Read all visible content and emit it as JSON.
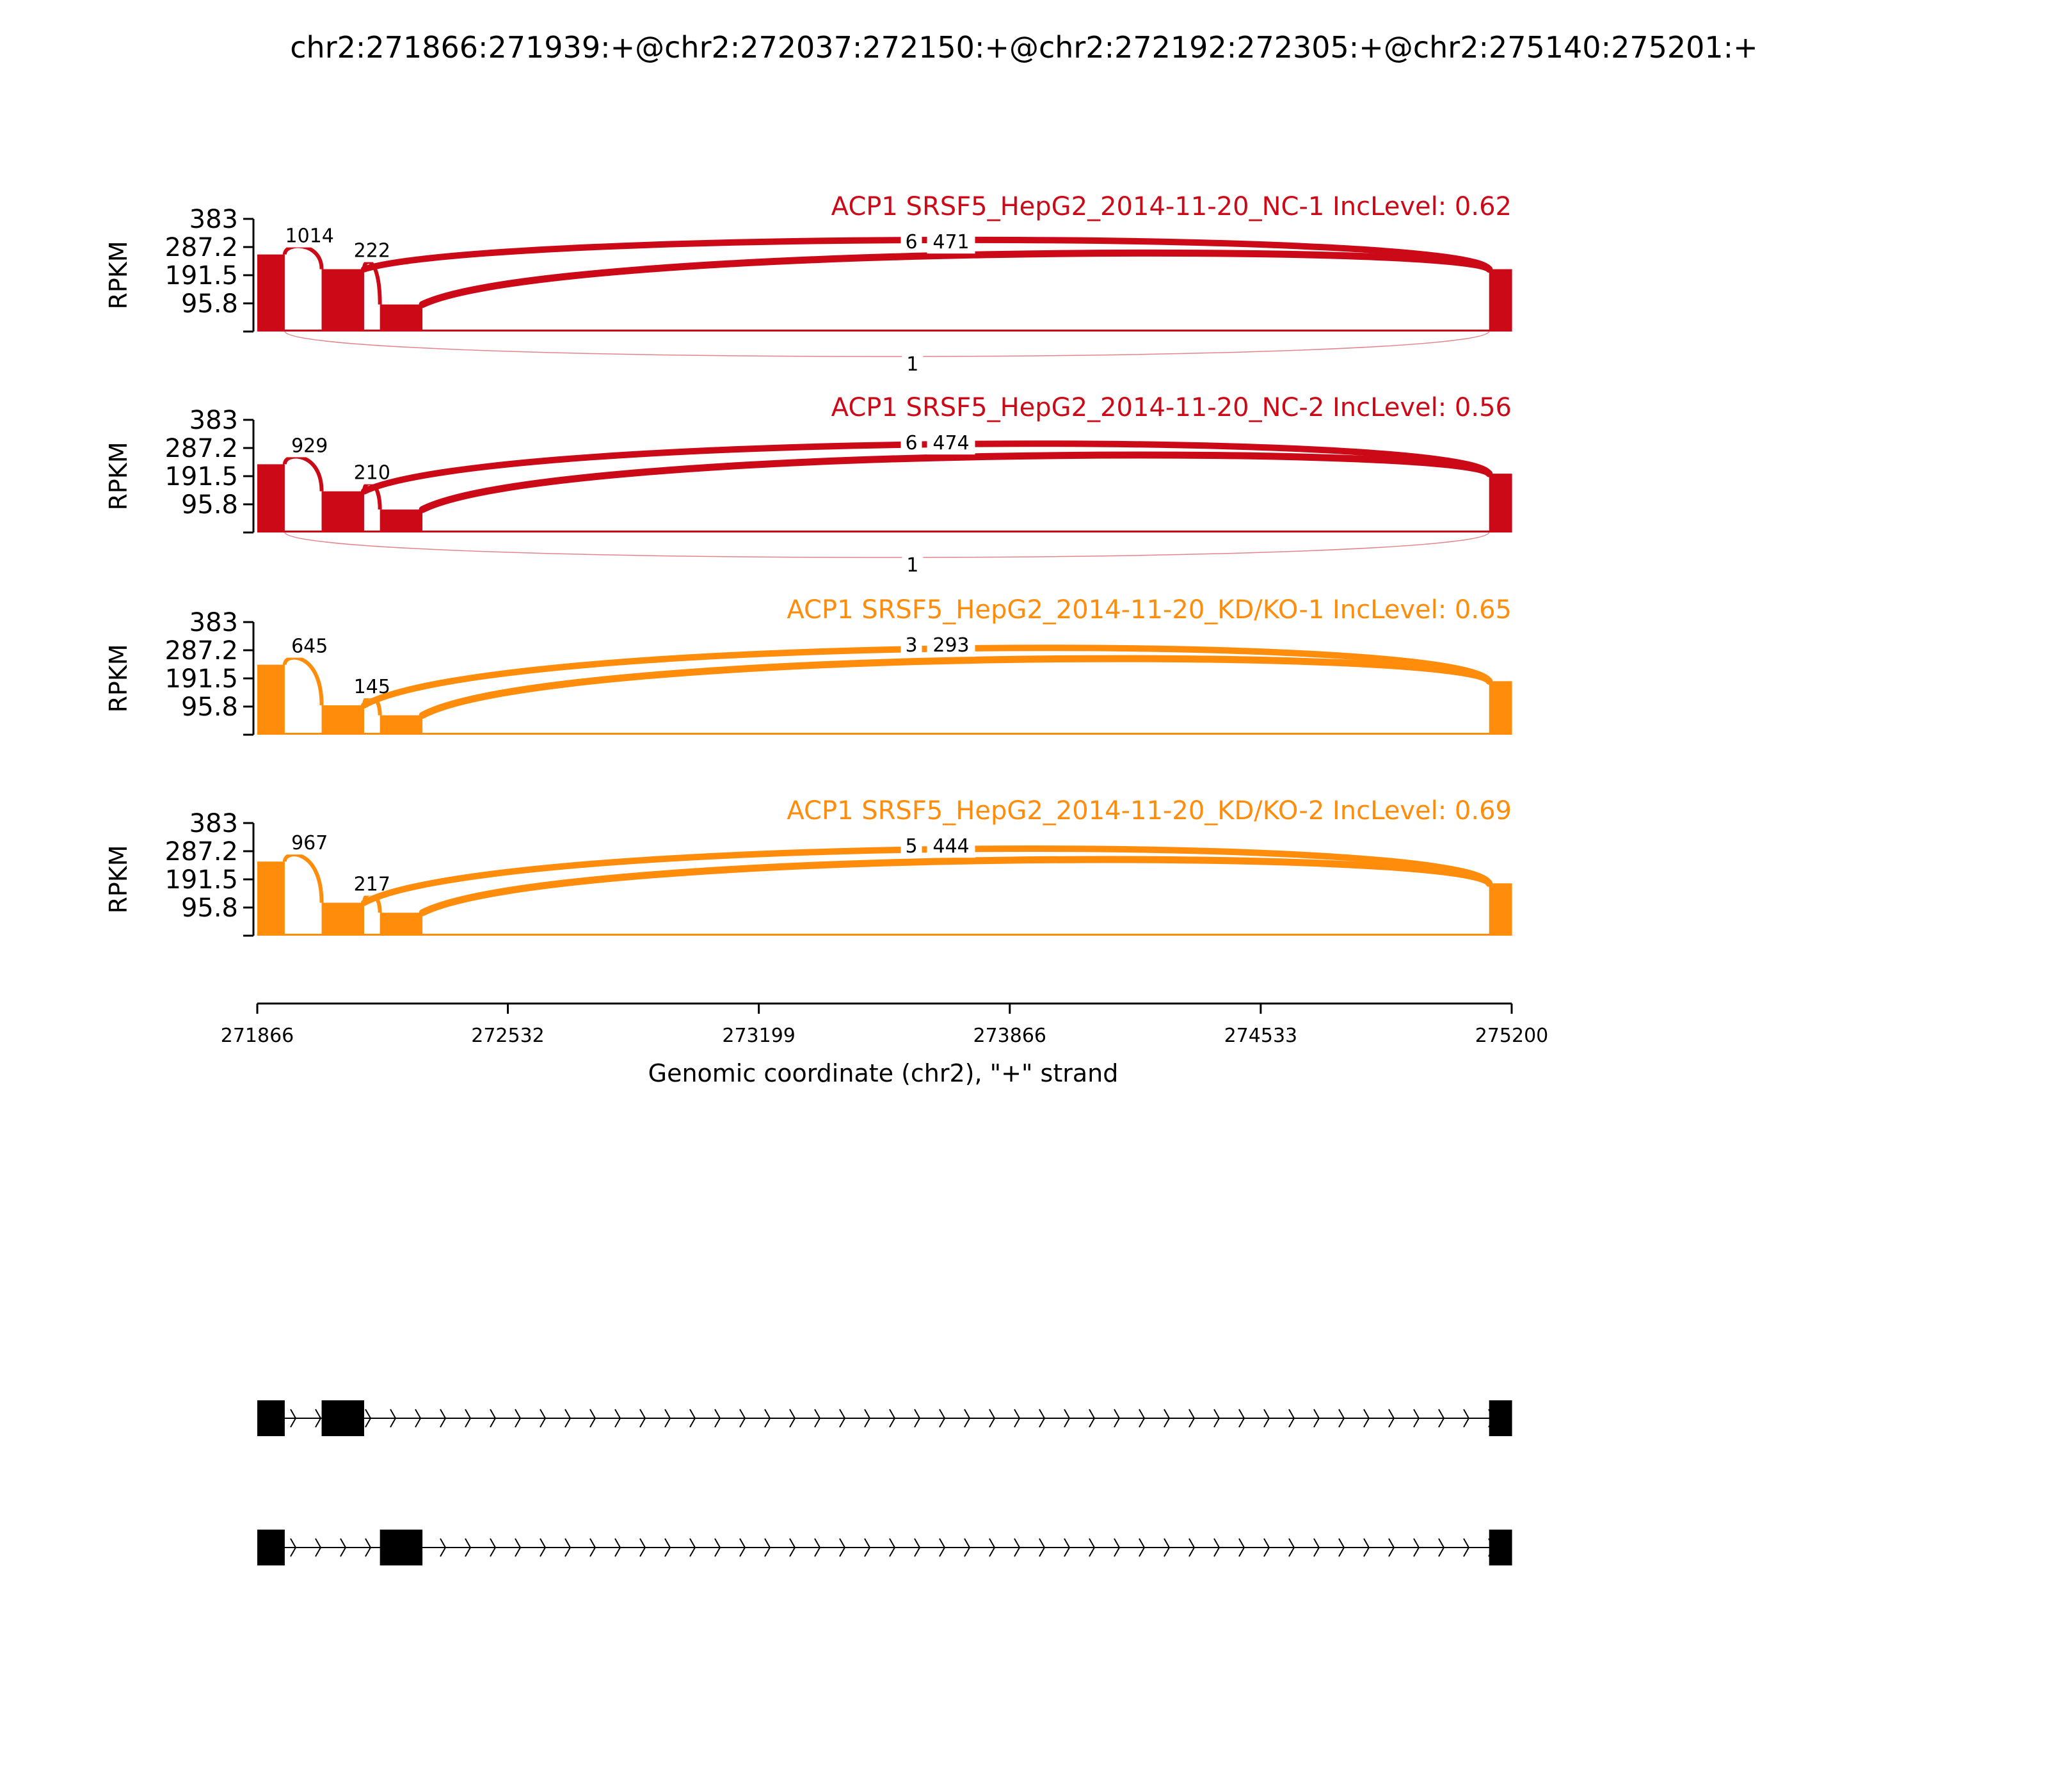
{
  "title": "chr2:271866:271939:+@chr2:272037:272150:+@chr2:272192:272305:+@chr2:275140:275201:+",
  "colors": {
    "nc": "#cc0a17",
    "kd": "#ff8c0a",
    "axis": "#000000",
    "gene": "#000000"
  },
  "chart_data": {
    "type": "area",
    "subtype": "sashimi",
    "xlabel": "Genomic coordinate (chr2), \"+\" strand",
    "xticks": [
      "271866",
      "272532",
      "273199",
      "273866",
      "274533",
      "275200"
    ],
    "xlim": [
      271866,
      275200
    ],
    "ylabel": "RPKM",
    "yticks": [
      "383",
      "287.2",
      "191.5",
      "95.8"
    ],
    "ylim": [
      0,
      383
    ],
    "exons": [
      {
        "start": 271866,
        "end": 271939
      },
      {
        "start": 272037,
        "end": 272150
      },
      {
        "start": 272192,
        "end": 272305
      },
      {
        "start": 275140,
        "end": 275201
      }
    ],
    "tracks": [
      {
        "label": "ACP1 SRSF5_HepG2_2014-11-20_NC-1 IncLevel: 0.62",
        "group": "nc",
        "coverage": [
          262,
          212,
          92,
          212
        ],
        "junctions": [
          {
            "from": 271939,
            "to": 272037,
            "count": "1014"
          },
          {
            "from": 272150,
            "to": 272192,
            "count": "222"
          },
          {
            "from": 272150,
            "to": 275140,
            "count": "6"
          },
          {
            "from": 272305,
            "to": 275140,
            "count": "471"
          },
          {
            "from": 271939,
            "to": 275140,
            "count": "1"
          }
        ]
      },
      {
        "label": "ACP1 SRSF5_HepG2_2014-11-20_NC-2 IncLevel: 0.56",
        "group": "nc",
        "coverage": [
          232,
          140,
          78,
          200
        ],
        "junctions": [
          {
            "from": 271939,
            "to": 272037,
            "count": "929"
          },
          {
            "from": 272150,
            "to": 272192,
            "count": "210"
          },
          {
            "from": 272150,
            "to": 275140,
            "count": "6"
          },
          {
            "from": 272305,
            "to": 275140,
            "count": "474"
          },
          {
            "from": 271939,
            "to": 275140,
            "count": "1"
          }
        ]
      },
      {
        "label": "ACP1 SRSF5_HepG2_2014-11-20_KD/KO-1 IncLevel: 0.65",
        "group": "kd",
        "coverage": [
          238,
          100,
          66,
          182
        ],
        "junctions": [
          {
            "from": 271939,
            "to": 272037,
            "count": "645"
          },
          {
            "from": 272150,
            "to": 272192,
            "count": "145"
          },
          {
            "from": 272150,
            "to": 275140,
            "count": "3"
          },
          {
            "from": 272305,
            "to": 275140,
            "count": "293"
          }
        ]
      },
      {
        "label": "ACP1 SRSF5_HepG2_2014-11-20_KD/KO-2 IncLevel: 0.69",
        "group": "kd",
        "coverage": [
          252,
          112,
          78,
          178
        ],
        "junctions": [
          {
            "from": 271939,
            "to": 272037,
            "count": "967"
          },
          {
            "from": 272150,
            "to": 272192,
            "count": "217"
          },
          {
            "from": 272150,
            "to": 275140,
            "count": "5"
          },
          {
            "from": 272305,
            "to": 275140,
            "count": "444"
          }
        ]
      }
    ],
    "isoforms": [
      {
        "exons": [
          [
            271866,
            271939
          ],
          [
            272037,
            272150
          ],
          [
            275140,
            275201
          ]
        ]
      },
      {
        "exons": [
          [
            271866,
            271939
          ],
          [
            272192,
            272305
          ],
          [
            275140,
            275201
          ]
        ]
      }
    ]
  }
}
